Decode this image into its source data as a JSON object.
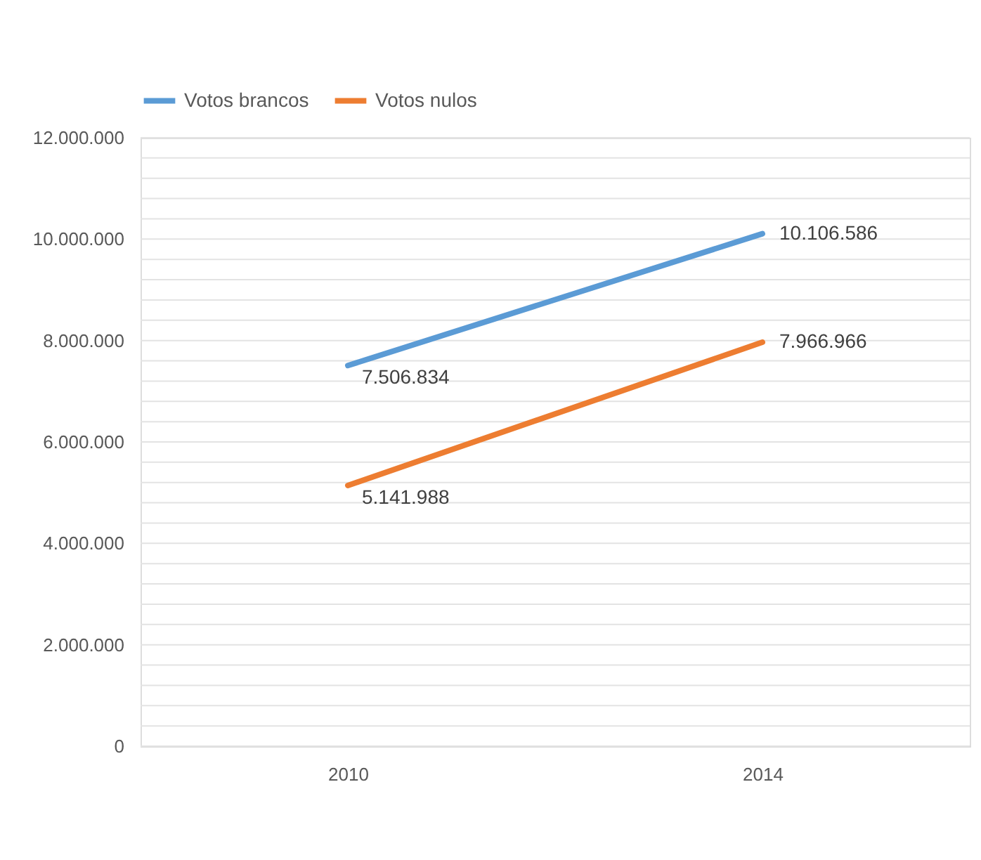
{
  "chart_data": {
    "type": "line",
    "categories": [
      "2010",
      "2014"
    ],
    "series": [
      {
        "name": "Votos brancos",
        "color": "#5b9bd5",
        "values": [
          7506834,
          10106586
        ],
        "value_labels": [
          "7.506.834",
          "10.106.586"
        ]
      },
      {
        "name": "Votos nulos",
        "color": "#ed7d31",
        "values": [
          5141988,
          7966966
        ],
        "value_labels": [
          "5.141.988",
          "7.966.966"
        ]
      }
    ],
    "ylim": [
      0,
      12000000
    ],
    "yticks": [
      {
        "value": 0,
        "label": "0"
      },
      {
        "value": 400000,
        "label": null
      },
      {
        "value": 800000,
        "label": null
      },
      {
        "value": 1200000,
        "label": null
      },
      {
        "value": 1600000,
        "label": null
      },
      {
        "value": 2000000,
        "label": "2.000.000"
      },
      {
        "value": 2400000,
        "label": null
      },
      {
        "value": 2800000,
        "label": null
      },
      {
        "value": 3200000,
        "label": null
      },
      {
        "value": 3600000,
        "label": null
      },
      {
        "value": 4000000,
        "label": "4.000.000"
      },
      {
        "value": 4400000,
        "label": null
      },
      {
        "value": 4800000,
        "label": null
      },
      {
        "value": 5200000,
        "label": null
      },
      {
        "value": 5600000,
        "label": null
      },
      {
        "value": 6000000,
        "label": "6.000.000"
      },
      {
        "value": 6400000,
        "label": null
      },
      {
        "value": 6800000,
        "label": null
      },
      {
        "value": 7200000,
        "label": null
      },
      {
        "value": 7600000,
        "label": null
      },
      {
        "value": 8000000,
        "label": "8.000.000"
      },
      {
        "value": 8400000,
        "label": null
      },
      {
        "value": 8800000,
        "label": null
      },
      {
        "value": 9200000,
        "label": null
      },
      {
        "value": 9600000,
        "label": null
      },
      {
        "value": 10000000,
        "label": "10.000.000"
      },
      {
        "value": 10400000,
        "label": null
      },
      {
        "value": 10800000,
        "label": null
      },
      {
        "value": 11200000,
        "label": null
      },
      {
        "value": 11600000,
        "label": null
      },
      {
        "value": 12000000,
        "label": "12.000.000"
      }
    ],
    "grid": "y",
    "legend": "top",
    "marker": "none",
    "line_style": "solid"
  }
}
